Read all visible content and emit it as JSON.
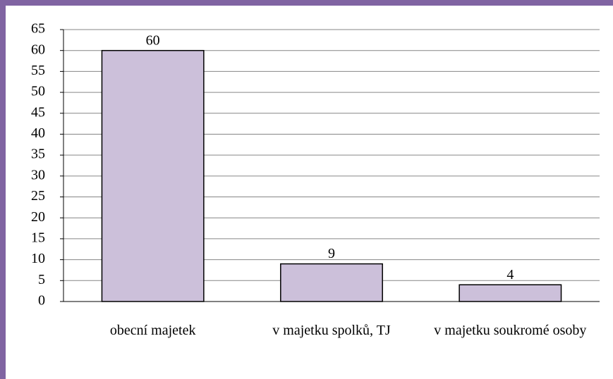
{
  "chart_data": {
    "type": "bar",
    "categories": [
      "obecní majetek",
      "v majetku spolků, TJ",
      "v majetku soukromé osoby"
    ],
    "values": [
      60,
      9,
      4
    ],
    "color": "#ccc0da",
    "ylim": [
      0,
      65
    ],
    "yticks": [
      0,
      5,
      10,
      15,
      20,
      25,
      30,
      35,
      40,
      45,
      50,
      55,
      60,
      65
    ],
    "grid": true
  }
}
